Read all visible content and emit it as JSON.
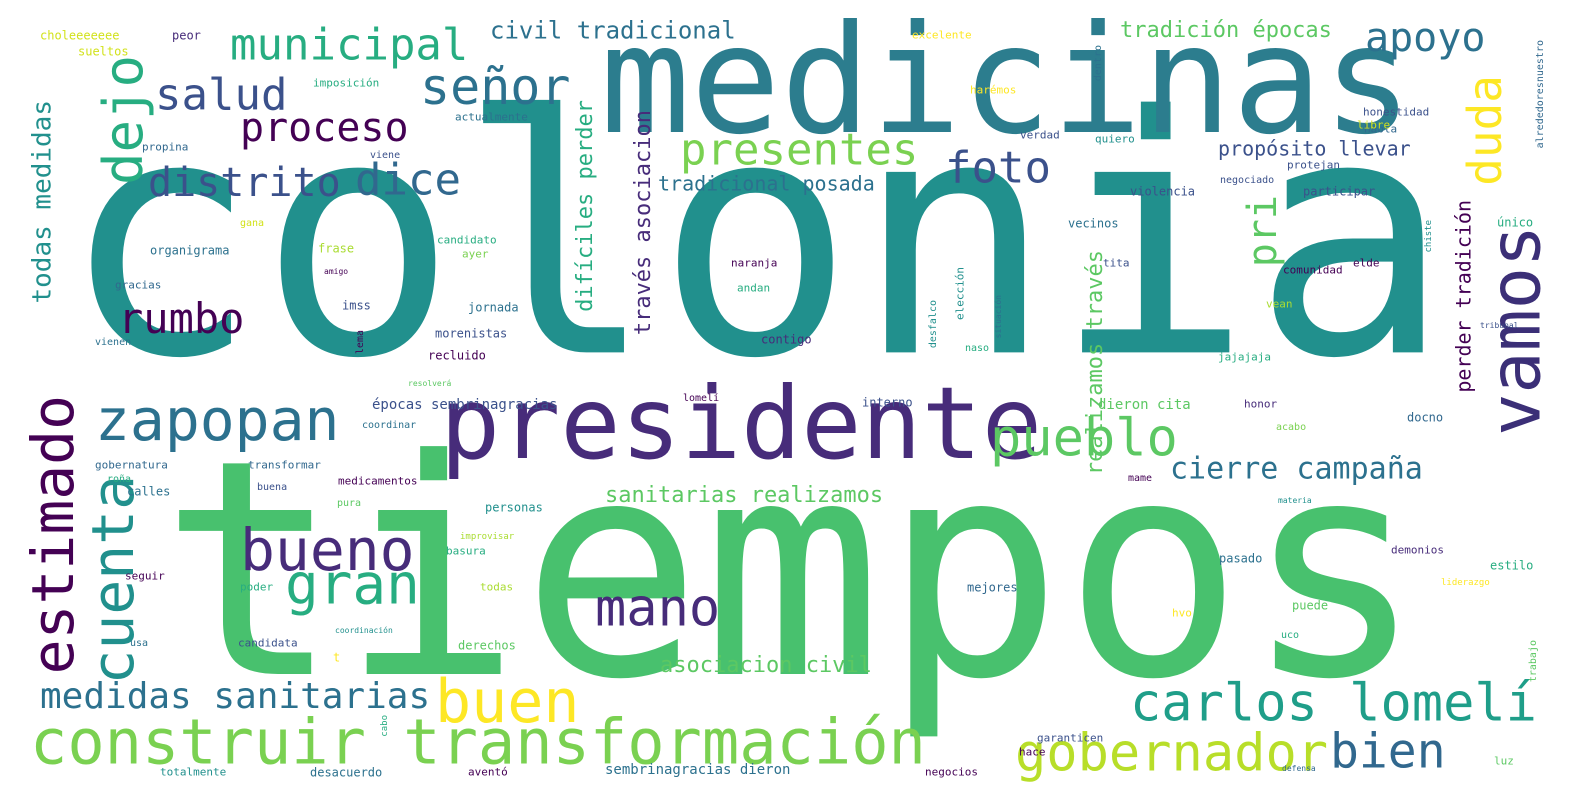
{
  "colors": {
    "background": "#ffffff",
    "palette": [
      "#440154",
      "#472c7a",
      "#3b518b",
      "#2c718e",
      "#21908d",
      "#27ad81",
      "#5cc863",
      "#aadc32",
      "#fde725"
    ]
  },
  "words": [
    {
      "text": "colonia",
      "color": "#21908d"
    },
    {
      "text": "tiempos",
      "color": "#48c16e"
    },
    {
      "text": "medicinas",
      "color": "#2c7d8e"
    },
    {
      "text": "presidente",
      "color": "#472c7a"
    },
    {
      "text": "vamos",
      "color": "#3b2f77"
    },
    {
      "text": "construir transformación",
      "color": "#7ad151"
    },
    {
      "text": "zapopan",
      "color": "#2c718e"
    },
    {
      "text": "estimado",
      "color": "#440154"
    },
    {
      "text": "cuenta",
      "color": "#21908d"
    },
    {
      "text": "bueno",
      "color": "#472c7a"
    },
    {
      "text": "gran",
      "color": "#27ad81"
    },
    {
      "text": "mano",
      "color": "#472c7a"
    },
    {
      "text": "buen",
      "color": "#fde725"
    },
    {
      "text": "pueblo",
      "color": "#5cc863"
    },
    {
      "text": "carlos lomelí",
      "color": "#1f9e89"
    },
    {
      "text": "gobernador",
      "color": "#b8de29"
    },
    {
      "text": "bien",
      "color": "#31688e"
    },
    {
      "text": "medidas sanitarias",
      "color": "#2c718e"
    },
    {
      "text": "señor",
      "color": "#2c718e"
    },
    {
      "text": "municipal",
      "color": "#27ad81"
    },
    {
      "text": "salud",
      "color": "#3b518b"
    },
    {
      "text": "proceso",
      "color": "#440154"
    },
    {
      "text": "distrito",
      "color": "#3b518b"
    },
    {
      "text": "dice",
      "color": "#31688e"
    },
    {
      "text": "dejo",
      "color": "#27ad81"
    },
    {
      "text": "rumbo",
      "color": "#440154"
    },
    {
      "text": "presentes",
      "color": "#7ad151"
    },
    {
      "text": "foto",
      "color": "#3b518b"
    },
    {
      "text": "apoyo",
      "color": "#2c718e"
    },
    {
      "text": "duda",
      "color": "#fde725"
    },
    {
      "text": "pri",
      "color": "#5cc863"
    },
    {
      "text": "cierre campaña",
      "color": "#2c718e"
    },
    {
      "text": "todas medidas",
      "color": "#21908d"
    },
    {
      "text": "civil tradicional",
      "color": "#2c718e"
    },
    {
      "text": "tradición épocas",
      "color": "#5cc863"
    },
    {
      "text": "propósito llevar",
      "color": "#3b518b"
    },
    {
      "text": "tradicional posada",
      "color": "#2c718e"
    },
    {
      "text": "sanitarias realizamos",
      "color": "#5cc863"
    },
    {
      "text": "asociacion civil",
      "color": "#5cc863"
    },
    {
      "text": "través asociacion",
      "color": "#472c7a"
    },
    {
      "text": "difíciles perder",
      "color": "#27ad81"
    },
    {
      "text": "realizamos través",
      "color": "#5cc863"
    },
    {
      "text": "perder tradición",
      "color": "#440154"
    },
    {
      "text": "sembrinagracias dieron",
      "color": "#2c718e"
    },
    {
      "text": "épocas sembrinagracias",
      "color": "#3b518b"
    },
    {
      "text": "dieron cita",
      "color": "#5cc863"
    },
    {
      "text": "choleeeeeee",
      "color": "#d2e21b"
    },
    {
      "text": "sueltos",
      "color": "#d2e21b"
    },
    {
      "text": "peor",
      "color": "#472c7a"
    },
    {
      "text": "excelente",
      "color": "#fde725"
    },
    {
      "text": "imposición",
      "color": "#27ad81"
    },
    {
      "text": "actualmente",
      "color": "#2c718e"
    },
    {
      "text": "propina",
      "color": "#31688e"
    },
    {
      "text": "viene",
      "color": "#3b518b"
    },
    {
      "text": "gana",
      "color": "#d2e21b"
    },
    {
      "text": "organigrama",
      "color": "#2c718e"
    },
    {
      "text": "frase",
      "color": "#aadc32"
    },
    {
      "text": "candidato",
      "color": "#27ad81"
    },
    {
      "text": "ayer",
      "color": "#7ad151"
    },
    {
      "text": "amigo",
      "color": "#440154"
    },
    {
      "text": "gracias",
      "color": "#31688e"
    },
    {
      "text": "imss",
      "color": "#3b518b"
    },
    {
      "text": "jornada",
      "color": "#2c718e"
    },
    {
      "text": "morenistas",
      "color": "#3b518b"
    },
    {
      "text": "lema",
      "color": "#440154"
    },
    {
      "text": "vienen",
      "color": "#2c718e"
    },
    {
      "text": "recluido",
      "color": "#440154"
    },
    {
      "text": "resolverá",
      "color": "#5cc863"
    },
    {
      "text": "lomelí",
      "color": "#440154"
    },
    {
      "text": "coordinar",
      "color": "#2c718e"
    },
    {
      "text": "gobernatura",
      "color": "#31688e"
    },
    {
      "text": "transformar",
      "color": "#31688e"
    },
    {
      "text": "roña",
      "color": "#27ad81"
    },
    {
      "text": "buena",
      "color": "#3b518b"
    },
    {
      "text": "medicamentos",
      "color": "#440154"
    },
    {
      "text": "calles",
      "color": "#2c718e"
    },
    {
      "text": "pura",
      "color": "#5cc863"
    },
    {
      "text": "personas",
      "color": "#21908d"
    },
    {
      "text": "improvisar",
      "color": "#aadc32"
    },
    {
      "text": "basura",
      "color": "#27ad81"
    },
    {
      "text": "seguir",
      "color": "#440154"
    },
    {
      "text": "poder",
      "color": "#27ad81"
    },
    {
      "text": "todas",
      "color": "#aadc32"
    },
    {
      "text": "usa",
      "color": "#2c718e"
    },
    {
      "text": "candidata",
      "color": "#3b518b"
    },
    {
      "text": "coordinación",
      "color": "#21908d"
    },
    {
      "text": "derechos",
      "color": "#5cc863"
    },
    {
      "text": "t",
      "color": "#fde725"
    },
    {
      "text": "totalmente",
      "color": "#21908d"
    },
    {
      "text": "desacuerdo",
      "color": "#2c718e"
    },
    {
      "text": "aventó",
      "color": "#440154"
    },
    {
      "text": "negocios",
      "color": "#440154"
    },
    {
      "text": "defensa",
      "color": "#31688e"
    },
    {
      "text": "luz",
      "color": "#5cc863"
    },
    {
      "text": "trabajo",
      "color": "#5cc863"
    },
    {
      "text": "dentro",
      "color": "#2c718e"
    },
    {
      "text": "desfalco",
      "color": "#21908d"
    },
    {
      "text": "elección",
      "color": "#21908d"
    },
    {
      "text": "situación",
      "color": "#2c718e"
    },
    {
      "text": "naso",
      "color": "#27ad81"
    },
    {
      "text": "harémos",
      "color": "#fde725"
    },
    {
      "text": "verdad",
      "color": "#3b518b"
    },
    {
      "text": "quiero",
      "color": "#21908d"
    },
    {
      "text": "negociado",
      "color": "#3b518b"
    },
    {
      "text": "violencia",
      "color": "#3b518b"
    },
    {
      "text": "vecinos",
      "color": "#2c718e"
    },
    {
      "text": "tita",
      "color": "#3b518b"
    },
    {
      "text": "elde",
      "color": "#440154"
    },
    {
      "text": "comunidad",
      "color": "#440154"
    },
    {
      "text": "naranja",
      "color": "#440154"
    },
    {
      "text": "andan",
      "color": "#27ad81"
    },
    {
      "text": "contigo",
      "color": "#472c7a"
    },
    {
      "text": "interno",
      "color": "#3b518b"
    },
    {
      "text": "honestidad",
      "color": "#3b518b"
    },
    {
      "text": "habla",
      "color": "#31688e"
    },
    {
      "text": "libre",
      "color": "#d2e21b"
    },
    {
      "text": "protejan",
      "color": "#3b518b"
    },
    {
      "text": "participar",
      "color": "#3b518b"
    },
    {
      "text": "alrededoresnuestro",
      "color": "#31688e"
    },
    {
      "text": "chiste",
      "color": "#21908d"
    },
    {
      "text": "único",
      "color": "#27ad81"
    },
    {
      "text": "tribunal",
      "color": "#3b518b"
    },
    {
      "text": "vean",
      "color": "#aadc32"
    },
    {
      "text": "jajajaja",
      "color": "#27ad81"
    },
    {
      "text": "honor",
      "color": "#472c7a"
    },
    {
      "text": "docno",
      "color": "#31688e"
    },
    {
      "text": "acabo",
      "color": "#7ad151"
    },
    {
      "text": "mame",
      "color": "#440154"
    },
    {
      "text": "materia",
      "color": "#21908d"
    },
    {
      "text": "demonios",
      "color": "#472c7a"
    },
    {
      "text": "estilo",
      "color": "#27ad81"
    },
    {
      "text": "liderazgo",
      "color": "#fde725"
    },
    {
      "text": "pasado",
      "color": "#2c718e"
    },
    {
      "text": "mejores",
      "color": "#31688e"
    },
    {
      "text": "puede",
      "color": "#5cc863"
    },
    {
      "text": "hvo",
      "color": "#fde725"
    },
    {
      "text": "uco",
      "color": "#27ad81"
    },
    {
      "text": "garanticen",
      "color": "#3b518b"
    },
    {
      "text": "hace",
      "color": "#440154"
    },
    {
      "text": "cabo",
      "color": "#27ad81"
    }
  ]
}
